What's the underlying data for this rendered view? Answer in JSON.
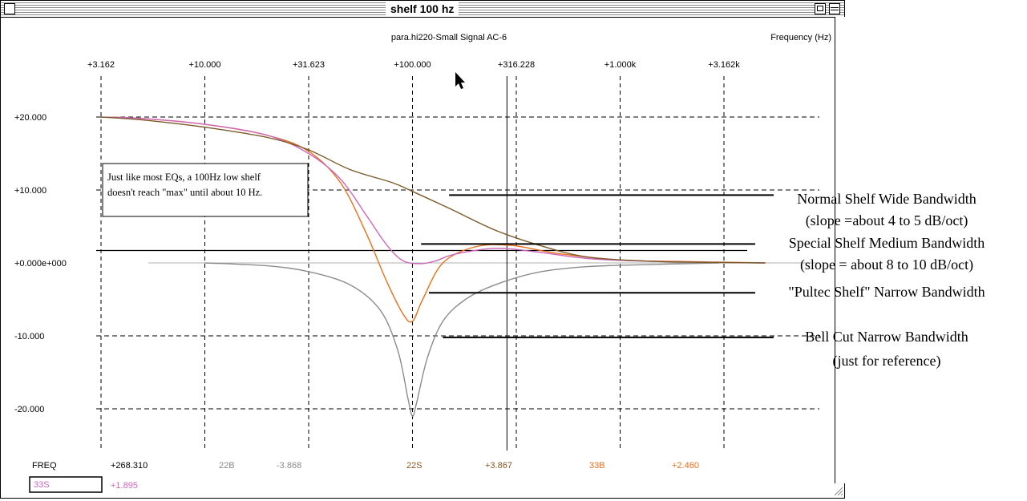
{
  "window": {
    "title": "shelf 100 hz"
  },
  "header": {
    "subtitle": "para.hi220-Small Signal AC-6",
    "axis_title": "Frequency  (Hz)"
  },
  "chart_data": {
    "type": "line",
    "x_scale": "log",
    "xlim": [
      2.0,
      6300
    ],
    "ylim": [
      -26,
      25
    ],
    "x_ticks": [
      {
        "value": 3.162,
        "label": "+3.162"
      },
      {
        "value": 10,
        "label": "+10.000"
      },
      {
        "value": 31.623,
        "label": "+31.623"
      },
      {
        "value": 100,
        "label": "+100.000"
      },
      {
        "value": 316.228,
        "label": "+316.228"
      },
      {
        "value": 1000,
        "label": "+1.000k"
      },
      {
        "value": 3162,
        "label": "+3.162k"
      }
    ],
    "y_ticks": [
      {
        "value": 20,
        "label": "+20.000"
      },
      {
        "value": 10,
        "label": "+10.000"
      },
      {
        "value": 0,
        "label": "+0.000e+000"
      },
      {
        "value": -10,
        "label": "-10.000"
      },
      {
        "value": -20,
        "label": "-20.000"
      }
    ],
    "cursor_x": 285,
    "series": [
      {
        "name": "Bell Cut",
        "color": "#8c8c8c",
        "x": [
          10,
          20,
          31.6,
          50,
          70,
          85,
          95,
          100,
          105,
          118,
          140,
          180,
          250,
          400,
          700,
          1500,
          3000
        ],
        "y": [
          0,
          -0.4,
          -1.2,
          -3,
          -6.5,
          -12,
          -18.5,
          -21,
          -19,
          -13,
          -8,
          -5,
          -3,
          -1.3,
          -0.5,
          -0.2,
          0
        ]
      },
      {
        "name": "Pultec Shelf",
        "color": "#e8701a",
        "x": [
          3.162,
          5,
          10,
          20,
          31.6,
          45,
          60,
          75,
          90,
          100,
          112,
          140,
          200,
          300,
          500,
          1000,
          2000,
          5000
        ],
        "y": [
          20,
          19.8,
          19,
          17.5,
          15.3,
          11,
          4,
          -2.5,
          -7,
          -8,
          -5,
          0,
          2.2,
          2.4,
          1.3,
          0.4,
          0.2,
          0
        ]
      },
      {
        "name": "Special Shelf",
        "color": "#cc66bb",
        "x": [
          3.162,
          5,
          10,
          20,
          31.6,
          45,
          60,
          75,
          90,
          110,
          130,
          160,
          250,
          400,
          700,
          1500,
          5000
        ],
        "y": [
          20,
          19.8,
          19,
          17.5,
          15,
          11.5,
          6.5,
          2.5,
          0.3,
          -0.1,
          0.3,
          1.2,
          2,
          1.5,
          0.6,
          0.2,
          0
        ]
      },
      {
        "name": "Normal Shelf",
        "color": "#7a5a28",
        "x": [
          3.162,
          5,
          10,
          20,
          31.6,
          50,
          80,
          100,
          150,
          250,
          400,
          700,
          1500,
          3000,
          5000
        ],
        "y": [
          20,
          19.6,
          18.6,
          17.2,
          15.5,
          12.8,
          11,
          9.8,
          7.5,
          4.5,
          2.5,
          0.8,
          0.2,
          0.05,
          0
        ]
      }
    ]
  },
  "flat_line": {
    "color": "#b0b0b0",
    "y": 0
  },
  "reference_line": {
    "y": 1.7
  },
  "footer": {
    "freq_label": "FREQ",
    "items": [
      {
        "text": "+268.310",
        "color": "#000000"
      },
      {
        "text": "22B",
        "color": "#8c8c8c"
      },
      {
        "text": "-3.868",
        "color": "#8c8c8c"
      },
      {
        "text": "22S",
        "color": "#8a5a20"
      },
      {
        "text": "+3.867",
        "color": "#8a5a20"
      },
      {
        "text": "33B",
        "color": "#e8701a"
      },
      {
        "text": "+2.460",
        "color": "#e8701a"
      }
    ],
    "box_text": "33S",
    "box_color": "#cc66bb",
    "box_value": "+1.895"
  },
  "note_box": {
    "line1": "Just like most EQs, a 100Hz low shelf",
    "line2": "doesn't reach \"max\" until about 10 Hz."
  },
  "annotations": [
    {
      "lines": [
        "Normal Shelf Wide Bandwidth",
        "(slope =about 4 to 5 dB/oct)"
      ],
      "point": [
        150,
        9.3
      ]
    },
    {
      "lines": [
        "Special Shelf Medium Bandwidth",
        "(slope = about 8 to 10 dB/oct)"
      ],
      "point": [
        110,
        2.6
      ]
    },
    {
      "lines": [
        "\"Pultec Shelf\" Narrow Bandwidth"
      ],
      "point": [
        120,
        -4.1
      ]
    },
    {
      "lines": [
        "Bell Cut Narrow Bandwidth",
        "(just for reference)"
      ],
      "point": [
        140,
        -10.2
      ]
    }
  ]
}
